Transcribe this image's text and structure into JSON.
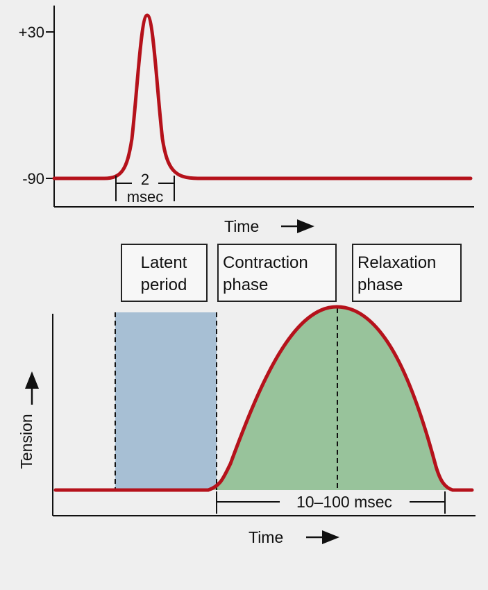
{
  "action_potential": {
    "y_tick_top": "+30",
    "y_tick_bottom": "-90",
    "duration_value": "2",
    "duration_unit": "msec",
    "x_label": "Time",
    "curve_color": "#b5121b"
  },
  "twitch": {
    "phases": [
      {
        "line1": "Latent",
        "line2": "period"
      },
      {
        "line1": "Contraction",
        "line2": "phase"
      },
      {
        "line1": "Relaxation",
        "line2": "phase"
      }
    ],
    "y_label": "Tension",
    "x_label": "Time",
    "duration": "10–100 msec",
    "latent_fill": "#a7bfd4",
    "contraction_fill": "#98c39b",
    "curve_color": "#b5121b"
  },
  "icons": [
    "arrow-right-icon",
    "arrow-up-icon"
  ]
}
